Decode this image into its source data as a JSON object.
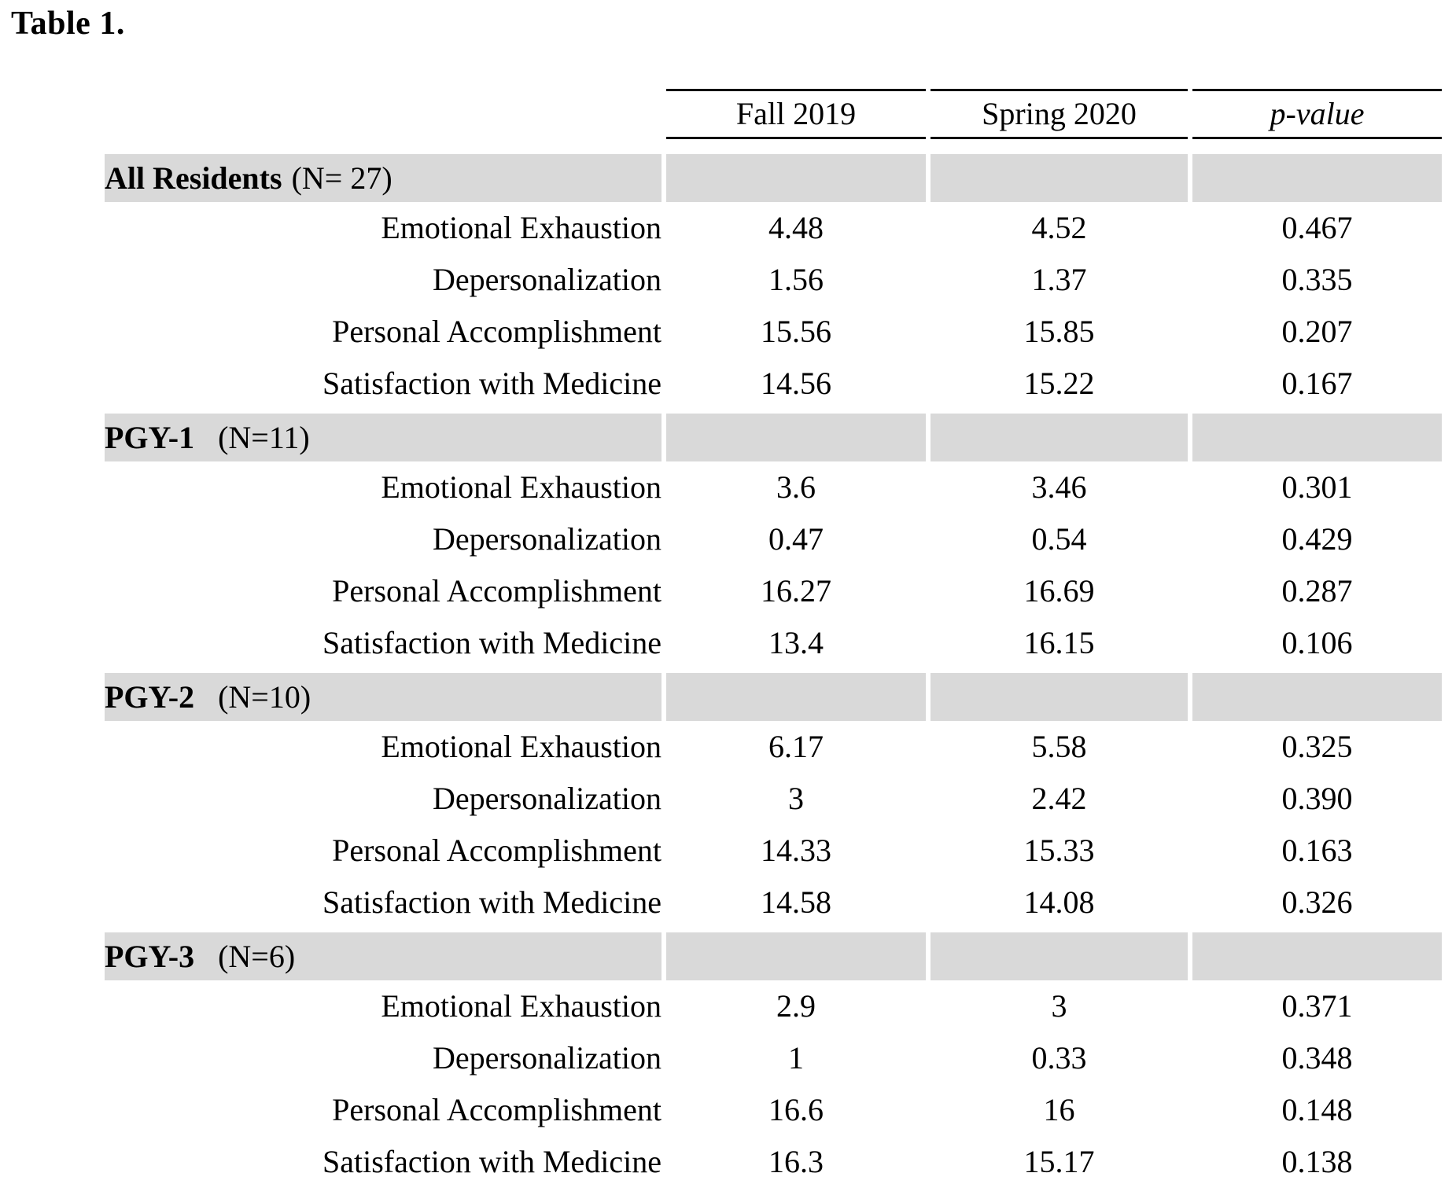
{
  "title": "Table 1.",
  "columns": [
    "Fall 2019",
    "Spring 2020",
    "p-value"
  ],
  "colors": {
    "band": "#d9d9d9",
    "rule": "#000000",
    "text": "#000000",
    "background": "#ffffff"
  },
  "sections": [
    {
      "id": "all-residents",
      "name": "All Residents",
      "n_label": "(N= 27)",
      "rows": [
        {
          "label": "Emotional Exhaustion",
          "fall_2019": "4.48",
          "spring_2020": "4.52",
          "p_value": "0.467"
        },
        {
          "label": "Depersonalization",
          "fall_2019": "1.56",
          "spring_2020": "1.37",
          "p_value": "0.335"
        },
        {
          "label": "Personal Accomplishment",
          "fall_2019": "15.56",
          "spring_2020": "15.85",
          "p_value": "0.207"
        },
        {
          "label": "Satisfaction with Medicine",
          "fall_2019": "14.56",
          "spring_2020": "15.22",
          "p_value": "0.167"
        }
      ]
    },
    {
      "id": "pgy-1",
      "name": "PGY-1",
      "n_label": "(N=11)",
      "rows": [
        {
          "label": "Emotional Exhaustion",
          "fall_2019": "3.6",
          "spring_2020": "3.46",
          "p_value": "0.301"
        },
        {
          "label": "Depersonalization",
          "fall_2019": "0.47",
          "spring_2020": "0.54",
          "p_value": "0.429"
        },
        {
          "label": "Personal Accomplishment",
          "fall_2019": "16.27",
          "spring_2020": "16.69",
          "p_value": "0.287"
        },
        {
          "label": "Satisfaction with Medicine",
          "fall_2019": "13.4",
          "spring_2020": "16.15",
          "p_value": "0.106"
        }
      ]
    },
    {
      "id": "pgy-2",
      "name": "PGY-2",
      "n_label": "(N=10)",
      "rows": [
        {
          "label": "Emotional Exhaustion",
          "fall_2019": "6.17",
          "spring_2020": "5.58",
          "p_value": "0.325"
        },
        {
          "label": "Depersonalization",
          "fall_2019": "3",
          "spring_2020": "2.42",
          "p_value": "0.390"
        },
        {
          "label": "Personal Accomplishment",
          "fall_2019": "14.33",
          "spring_2020": "15.33",
          "p_value": "0.163"
        },
        {
          "label": "Satisfaction with Medicine",
          "fall_2019": "14.58",
          "spring_2020": "14.08",
          "p_value": "0.326"
        }
      ]
    },
    {
      "id": "pgy-3",
      "name": "PGY-3",
      "n_label": "(N=6)",
      "rows": [
        {
          "label": "Emotional Exhaustion",
          "fall_2019": "2.9",
          "spring_2020": "3",
          "p_value": "0.371"
        },
        {
          "label": "Depersonalization",
          "fall_2019": "1",
          "spring_2020": "0.33",
          "p_value": "0.348"
        },
        {
          "label": "Personal Accomplishment",
          "fall_2019": "16.6",
          "spring_2020": "16",
          "p_value": "0.148"
        },
        {
          "label": "Satisfaction with Medicine",
          "fall_2019": "16.3",
          "spring_2020": "15.17",
          "p_value": "0.138"
        }
      ]
    }
  ]
}
